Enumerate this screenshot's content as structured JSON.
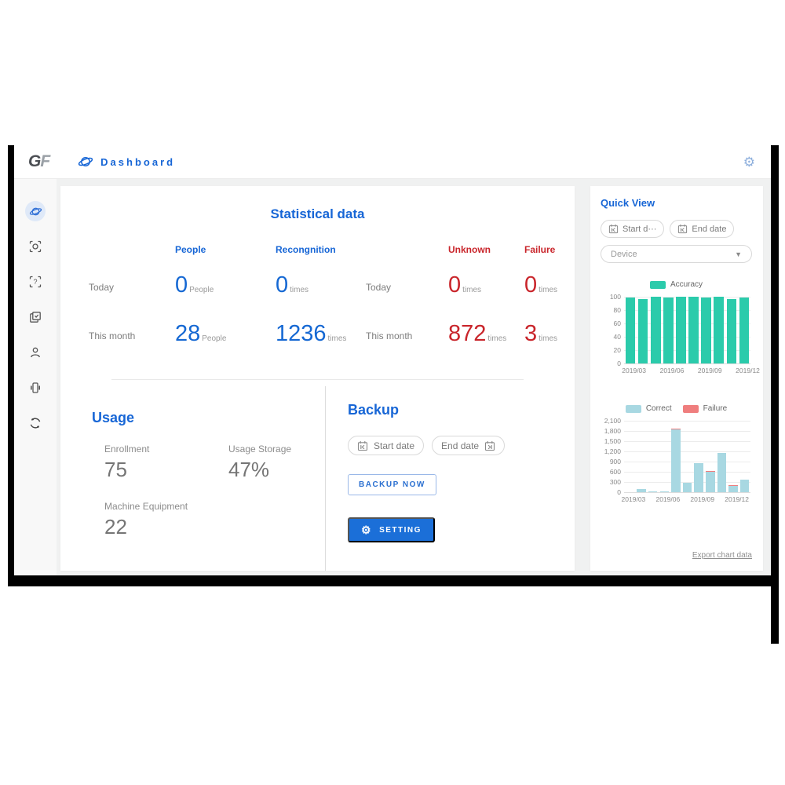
{
  "header": {
    "logo_g": "G",
    "logo_f": "F",
    "title": "Dashboard"
  },
  "sidebar": {
    "items": [
      {
        "icon": "planet-icon",
        "active": true
      },
      {
        "icon": "face-scan-icon",
        "active": false
      },
      {
        "icon": "scan-question-icon",
        "active": false
      },
      {
        "icon": "copy-pages-icon",
        "active": false
      },
      {
        "icon": "user-icon",
        "active": false
      },
      {
        "icon": "device-icon",
        "active": false
      },
      {
        "icon": "sync-icon",
        "active": false
      }
    ]
  },
  "stats": {
    "title": "Statistical data",
    "left": {
      "columns": [
        "People",
        "Recongnition"
      ],
      "rows": [
        {
          "label": "Today",
          "values": [
            {
              "v": "0",
              "unit": "People"
            },
            {
              "v": "0",
              "unit": "times"
            }
          ]
        },
        {
          "label": "This month",
          "values": [
            {
              "v": "28",
              "unit": "People"
            },
            {
              "v": "1236",
              "unit": "times"
            }
          ]
        }
      ]
    },
    "right": {
      "columns": [
        "Unknown",
        "Failure"
      ],
      "rows": [
        {
          "label": "Today",
          "values": [
            {
              "v": "0",
              "unit": "times"
            },
            {
              "v": "0",
              "unit": "times"
            }
          ]
        },
        {
          "label": "This month",
          "values": [
            {
              "v": "872",
              "unit": "times"
            },
            {
              "v": "3",
              "unit": "times"
            }
          ]
        }
      ]
    }
  },
  "usage": {
    "title": "Usage",
    "metrics": [
      {
        "label": "Enrollment",
        "value": "75"
      },
      {
        "label": "Usage Storage",
        "value": "47%"
      },
      {
        "label": "Machine Equipment",
        "value": "22"
      }
    ]
  },
  "backup": {
    "title": "Backup",
    "start_placeholder": "Start date",
    "end_placeholder": "End date",
    "backup_button": "BACKUP NOW",
    "setting_button": "SETTING"
  },
  "quick_view": {
    "title": "Quick View",
    "start_placeholder": "Start d···",
    "end_placeholder": "End date",
    "device_placeholder": "Device",
    "export_link": "Export chart data"
  },
  "colors": {
    "accent_blue": "#1766d6",
    "stat_red": "#c9252b",
    "accuracy_teal": "#2bcbab",
    "correct_blue": "#a8d8e2",
    "failure_red": "#ef7e7e"
  },
  "chart_data": [
    {
      "type": "bar",
      "title": "Accuracy",
      "legend": [
        {
          "name": "Accuracy",
          "color": "#2bcbab"
        }
      ],
      "values": [
        99,
        97,
        100,
        99,
        100,
        100,
        99,
        100,
        96,
        99
      ],
      "ylim": [
        0,
        100
      ],
      "yticks": [
        {
          "v": 0,
          "label": "0"
        },
        {
          "v": 20,
          "label": "20"
        },
        {
          "v": 40,
          "label": "40"
        },
        {
          "v": 60,
          "label": "60"
        },
        {
          "v": 80,
          "label": "80"
        },
        {
          "v": 100,
          "label": "100"
        }
      ],
      "x_labels": [
        "2019/03",
        "2019/06",
        "2019/09",
        "2019/12"
      ],
      "label_indices": [
        0,
        3,
        6,
        9
      ],
      "grid": true,
      "legend_position": "top"
    },
    {
      "type": "bar",
      "title": "Correct vs Failure",
      "legend": [
        {
          "name": "Correct",
          "color": "#a8d8e2"
        },
        {
          "name": "Failure",
          "color": "#ef7e7e"
        }
      ],
      "series": [
        {
          "name": "Correct",
          "color": "#a8d8e2",
          "values": [
            0,
            90,
            30,
            30,
            1840,
            270,
            850,
            600,
            1150,
            190,
            360
          ]
        },
        {
          "name": "Failure",
          "color": "#ef7e7e",
          "values": [
            0,
            0,
            0,
            0,
            35,
            0,
            0,
            12,
            0,
            15,
            0
          ]
        }
      ],
      "stacked": true,
      "ylim": [
        0,
        2100
      ],
      "yticks": [
        {
          "v": 0,
          "label": "0"
        },
        {
          "v": 300,
          "label": "300"
        },
        {
          "v": 600,
          "label": "600"
        },
        {
          "v": 900,
          "label": "900"
        },
        {
          "v": 1200,
          "label": "1,200"
        },
        {
          "v": 1500,
          "label": "1,500"
        },
        {
          "v": 1800,
          "label": "1,800"
        },
        {
          "v": 2100,
          "label": "2,100"
        }
      ],
      "x_labels": [
        "2019/03",
        "2019/06",
        "2019/09",
        "2019/12"
      ],
      "label_indices": [
        0,
        3,
        6,
        9
      ],
      "grid": true,
      "legend_position": "top"
    }
  ]
}
